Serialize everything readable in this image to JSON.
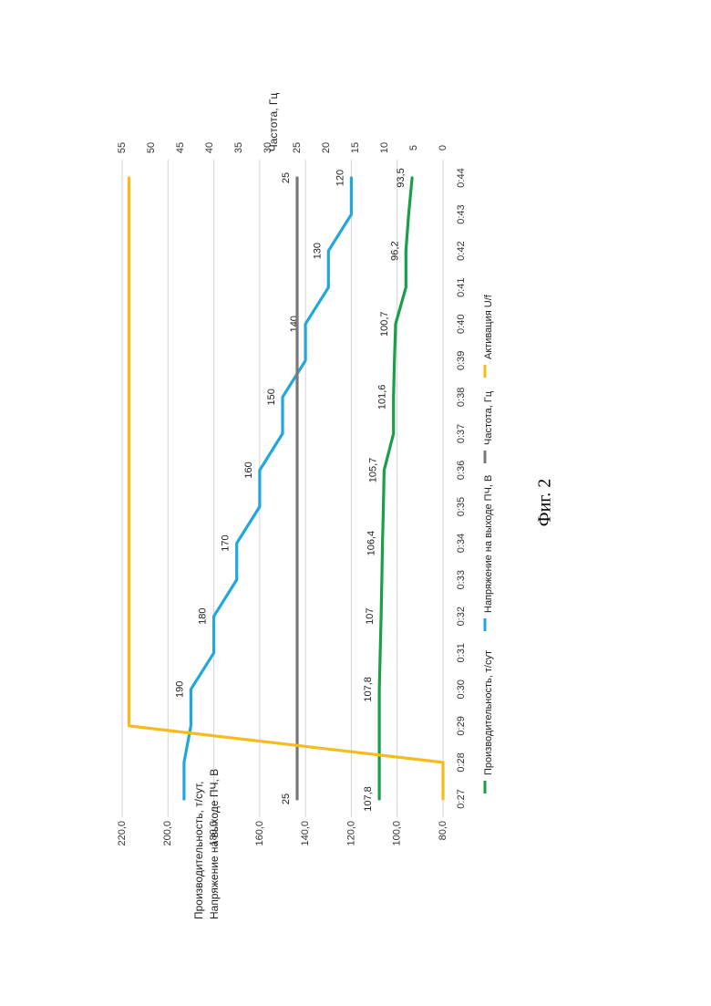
{
  "figure": {
    "caption": "Фиг. 2"
  },
  "chart_data": {
    "type": "line",
    "orientation": "rotated -90° (x axis runs top to bottom)",
    "xlabel": "",
    "x": [
      "0:27",
      "0:28",
      "0:29",
      "0:30",
      "0:31",
      "0:32",
      "0:33",
      "0:34",
      "0:35",
      "0:36",
      "0:37",
      "0:38",
      "0:39",
      "0:40",
      "0:41",
      "0:42",
      "0:43",
      "0:44"
    ],
    "y_left": {
      "label": "Производительность, т/сут, Напряжение на выходе ПЧ, В",
      "ylim": [
        80,
        220
      ],
      "ticks": [
        "80,0",
        "100,0",
        "120,0",
        "140,0",
        "160,0",
        "180,0",
        "200,0",
        "220,0"
      ]
    },
    "y_right": {
      "label": "Частота, Гц",
      "ylim": [
        0,
        55
      ],
      "ticks": [
        "0",
        "5",
        "10",
        "15",
        "20",
        "25",
        "30",
        "35",
        "40",
        "45",
        "50",
        "55"
      ]
    },
    "grid": true,
    "legend_position": "bottom",
    "series": [
      {
        "name": "Производительность, т/сут",
        "axis": "left",
        "color": "#1a9e48",
        "values": [
          107.8,
          107.8,
          107.8,
          107.8,
          107.4,
          107,
          106.7,
          106.4,
          106,
          105.7,
          101.6,
          101.6,
          101.2,
          100.7,
          96.2,
          96.2,
          95,
          93.5
        ],
        "labels": {
          "0": "107,8",
          "3": "107,8",
          "5": "107",
          "7": "106,4",
          "9": "105,7",
          "11": "101,6",
          "13": "100,7",
          "15": "96,2",
          "17": "93,5"
        }
      },
      {
        "name": "Напряжение на выходе ПЧ, В",
        "axis": "left",
        "color": "#22a7dd",
        "values": [
          193,
          193,
          190,
          190,
          180,
          180,
          170,
          170,
          160,
          160,
          150,
          150,
          140,
          140,
          130,
          130,
          120,
          120
        ],
        "labels": {
          "3": "190",
          "5": "180",
          "7": "170",
          "9": "160",
          "11": "150",
          "13": "140",
          "15": "130",
          "17": "120"
        }
      },
      {
        "name": "Частота, Гц",
        "axis": "right",
        "color": "#787878",
        "values": [
          25,
          25,
          25,
          25,
          25,
          25,
          25,
          25,
          25,
          25,
          25,
          25,
          25,
          25,
          25,
          25,
          25,
          25
        ],
        "labels": {
          "0": "25",
          "17": "25"
        }
      },
      {
        "name": "Активация U/f",
        "axis": "left",
        "color": "#f7bb1e",
        "values": [
          80,
          80,
          217,
          217,
          217,
          217,
          217,
          217,
          217,
          217,
          217,
          217,
          217,
          217,
          217,
          217,
          217,
          217
        ],
        "labels": {}
      }
    ]
  }
}
